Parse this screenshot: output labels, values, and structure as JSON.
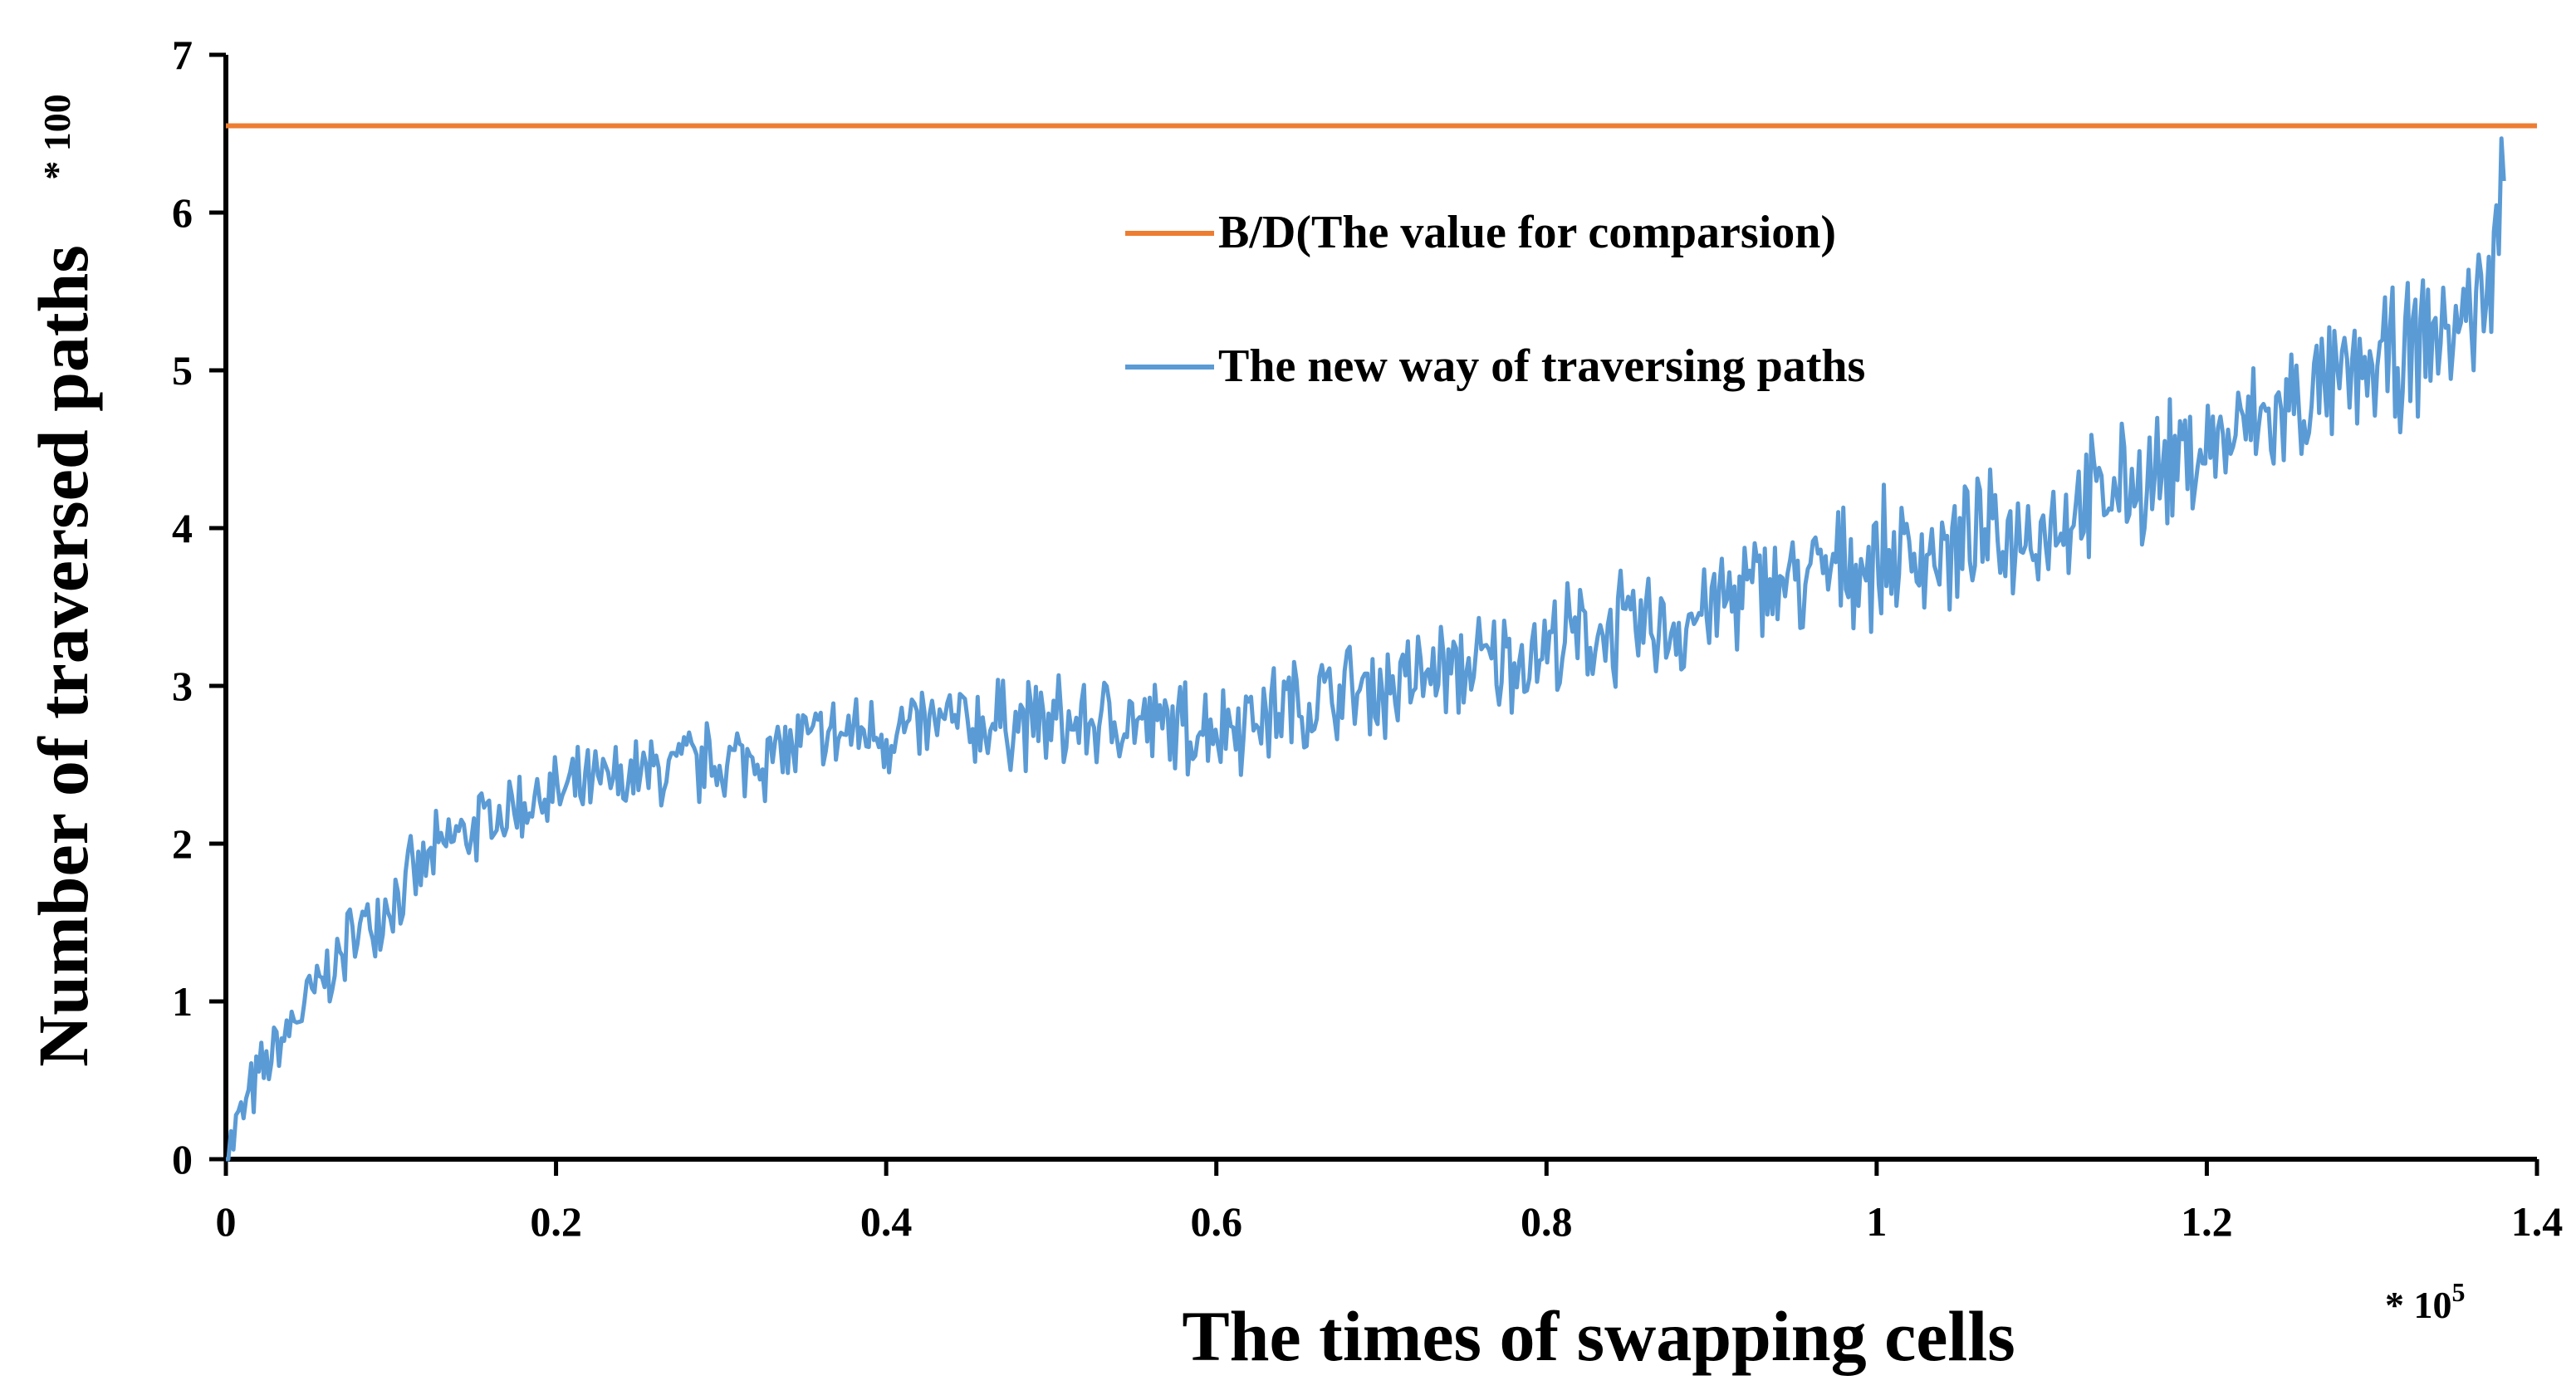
{
  "chart_data": {
    "type": "line",
    "title": "",
    "xlabel": "The times of swapping cells",
    "ylabel": "Number of traversed paths",
    "x_multiplier": {
      "prefix": "* 10",
      "exponent": "5"
    },
    "y_multiplier": "* 100",
    "xlim": [
      0,
      1.4
    ],
    "ylim": [
      0,
      7
    ],
    "x_ticks": [
      0,
      0.2,
      0.4,
      0.6,
      0.8,
      1,
      1.2,
      1.4
    ],
    "x_tick_labels": [
      "0",
      "0.2",
      "0.4",
      "0.6",
      "0.8",
      "1",
      "1.2",
      "1.4"
    ],
    "y_ticks": [
      0,
      1,
      2,
      3,
      4,
      5,
      6,
      7
    ],
    "y_tick_labels": [
      "0",
      "1",
      "2",
      "3",
      "4",
      "5",
      "6",
      "7"
    ],
    "grid": false,
    "legend_position": "top-center",
    "series": [
      {
        "name": "B/D(The value for comparsion)",
        "color": "#ED7D31",
        "x": [
          0,
          1.4
        ],
        "y": [
          6.55,
          6.55
        ]
      },
      {
        "name": "The new way of traversing paths",
        "color": "#5B9BD5",
        "x": [
          0,
          0.005,
          0.01,
          0.02,
          0.03,
          0.04,
          0.05,
          0.06,
          0.07,
          0.08,
          0.09,
          0.1,
          0.11,
          0.12,
          0.13,
          0.14,
          0.15,
          0.16,
          0.17,
          0.18,
          0.19,
          0.2,
          0.22,
          0.24,
          0.26,
          0.28,
          0.3,
          0.32,
          0.34,
          0.36,
          0.38,
          0.4,
          0.42,
          0.44,
          0.46,
          0.48,
          0.5,
          0.52,
          0.54,
          0.56,
          0.58,
          0.6,
          0.62,
          0.64,
          0.66,
          0.68,
          0.7,
          0.72,
          0.74,
          0.76,
          0.78,
          0.8,
          0.82,
          0.84,
          0.86,
          0.88,
          0.9,
          0.92,
          0.94,
          0.96,
          0.98,
          1.0,
          1.02,
          1.04,
          1.06,
          1.08,
          1.1,
          1.12,
          1.14,
          1.16,
          1.18,
          1.2,
          1.22,
          1.24,
          1.26,
          1.28,
          1.3,
          1.32,
          1.34,
          1.36,
          1.37,
          1.375,
          1.38
        ],
        "y": [
          0.0,
          0.15,
          0.3,
          0.5,
          0.68,
          0.85,
          1.0,
          1.15,
          1.3,
          1.45,
          1.55,
          1.65,
          1.75,
          1.85,
          1.95,
          2.05,
          2.1,
          2.15,
          2.2,
          2.25,
          2.3,
          2.3,
          2.35,
          2.4,
          2.45,
          2.5,
          2.5,
          2.55,
          2.6,
          2.65,
          2.7,
          2.7,
          2.72,
          2.75,
          2.75,
          2.78,
          2.75,
          2.75,
          2.78,
          2.75,
          2.72,
          2.75,
          2.8,
          2.85,
          2.9,
          2.95,
          3.0,
          3.05,
          3.1,
          3.12,
          3.18,
          3.25,
          3.3,
          3.35,
          3.35,
          3.4,
          3.5,
          3.6,
          3.65,
          3.7,
          3.75,
          3.8,
          3.85,
          3.85,
          3.9,
          3.95,
          4.0,
          4.1,
          4.2,
          4.3,
          4.4,
          4.5,
          4.6,
          4.7,
          4.8,
          4.9,
          5.0,
          5.1,
          5.2,
          5.4,
          5.5,
          5.8,
          6.2
        ]
      }
    ]
  }
}
